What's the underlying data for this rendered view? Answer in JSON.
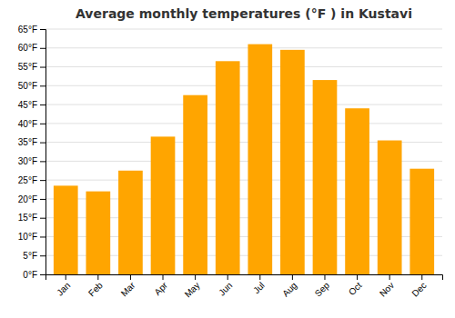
{
  "chart_data": {
    "type": "bar",
    "title": "Average monthly temperatures (°F ) in Kustavi",
    "categories": [
      "Jan",
      "Feb",
      "Mar",
      "Apr",
      "May",
      "Jun",
      "Jul",
      "Aug",
      "Sep",
      "Oct",
      "Nov",
      "Dec"
    ],
    "values": [
      23.5,
      22.0,
      27.5,
      36.5,
      47.5,
      56.5,
      61.0,
      59.5,
      51.5,
      44.0,
      35.5,
      28.0
    ],
    "color": "#FFA500",
    "ylim": [
      0,
      65
    ],
    "yticks": [
      {
        "value": 0,
        "label": "0°F"
      },
      {
        "value": 5,
        "label": "5°F"
      },
      {
        "value": 10,
        "label": "10°F"
      },
      {
        "value": 15,
        "label": "15°F"
      },
      {
        "value": 20,
        "label": "20°F"
      },
      {
        "value": 25,
        "label": "25°F"
      },
      {
        "value": 30,
        "label": "30°F"
      },
      {
        "value": 35,
        "label": "35°F"
      },
      {
        "value": 40,
        "label": "40°F"
      },
      {
        "value": 45,
        "label": "45°F"
      },
      {
        "value": 50,
        "label": "50°F"
      },
      {
        "value": 55,
        "label": "55°F"
      },
      {
        "value": 60,
        "label": "60°F"
      },
      {
        "value": 65,
        "label": "65°F"
      }
    ],
    "grid": true
  }
}
